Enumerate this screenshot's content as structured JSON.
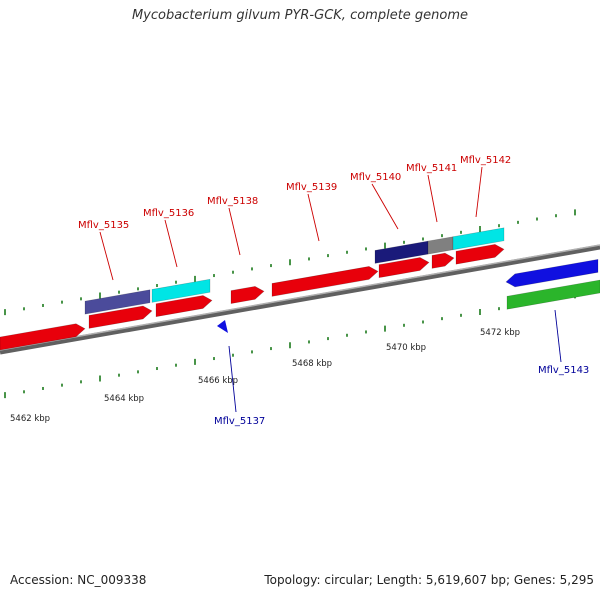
{
  "title": "Mycobacterium gilvum PYR-GCK, complete genome",
  "footer": {
    "accession": "Accession: NC_009338",
    "summary": "Topology: circular; Length: 5,619,607 bp; Genes: 5,295"
  },
  "colors": {
    "forward_cds": "#e8000b",
    "reverse_cds": "#1010e0",
    "rna": "#2bb52b",
    "navy": "#1a1a7a",
    "slate": "#4b4b9b",
    "cyan": "#00e5e5",
    "gray": "#808080",
    "forward_label": "#cc0000",
    "reverse_label": "#000099",
    "tick": "#1a7a1a"
  },
  "scale_labels": [
    "5462 kbp",
    "5464 kbp",
    "5466 kbp",
    "5468 kbp",
    "5470 kbp",
    "5472 kbp"
  ],
  "gene_labels": {
    "forward": [
      "Mflv_5135",
      "Mflv_5136",
      "Mflv_5138",
      "Mflv_5139",
      "Mflv_5140",
      "Mflv_5141",
      "Mflv_5142"
    ],
    "reverse": [
      "Mflv_5137",
      "Mflv_5143"
    ]
  }
}
